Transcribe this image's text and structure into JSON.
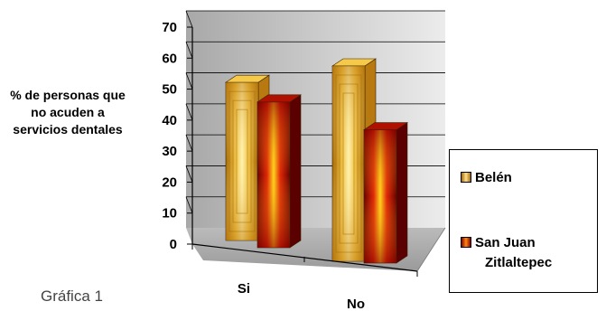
{
  "chart_data": {
    "type": "bar",
    "ylabel": "% de personas que no acuden a servicios dentales",
    "categories": [
      "Si",
      "No"
    ],
    "yticks": [
      0,
      10,
      20,
      30,
      40,
      50,
      60,
      70
    ],
    "ylim": [
      0,
      70
    ],
    "grid": true,
    "legend_position": "right",
    "series": [
      {
        "name": "Belén",
        "values": [
          51,
          63
        ],
        "color": "#e0a31c"
      },
      {
        "name": "San Juan Zitlaltepec",
        "values": [
          47,
          43
        ],
        "color": "#d62a0c"
      }
    ]
  },
  "legend": {
    "item1": "Belén",
    "item2_line1": "San Juan",
    "item2_line2": "Zitlaltepec"
  },
  "caption": "Gráfica 1"
}
